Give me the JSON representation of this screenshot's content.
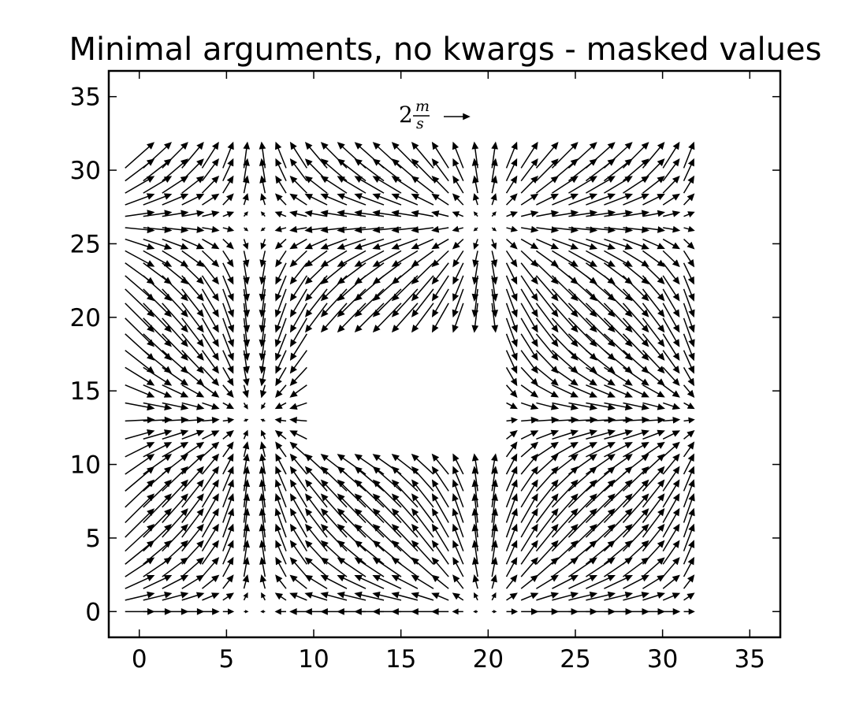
{
  "chart_data": {
    "type": "quiver",
    "title": "Minimal arguments, no kwargs - masked values",
    "xlabel": "",
    "ylabel": "",
    "xlim": [
      -1.75,
      36.75
    ],
    "ylim": [
      -1.75,
      36.75
    ],
    "x_ticks": [
      0,
      5,
      10,
      15,
      20,
      25,
      30,
      35
    ],
    "y_ticks": [
      0,
      5,
      10,
      15,
      20,
      25,
      30,
      35
    ],
    "x_tick_labels": [
      "0",
      "5",
      "10",
      "15",
      "20",
      "25",
      "30",
      "35"
    ],
    "y_tick_labels": [
      "0",
      "5",
      "10",
      "15",
      "20",
      "25",
      "30",
      "35"
    ],
    "grid": {
      "x_start": 0,
      "x_end": 31.5,
      "x_count": 32,
      "y_start": 0,
      "y_end": 31,
      "y_count": 32
    },
    "field": {
      "u": "cos(pi * x / 13.2)",
      "v": "sin(pi * y / 13.2)"
    },
    "masked_region": {
      "x_min": 9.2,
      "x_max": 20.5,
      "y_min": 10,
      "y_max": 20
    },
    "quiver_key": {
      "value": 2,
      "label_base": "2",
      "label_numerator": "m",
      "label_denominator": "s"
    },
    "grid_lines": false,
    "colors": {
      "arrow": "#000000",
      "frame": "#000000",
      "background": "#ffffff"
    }
  }
}
